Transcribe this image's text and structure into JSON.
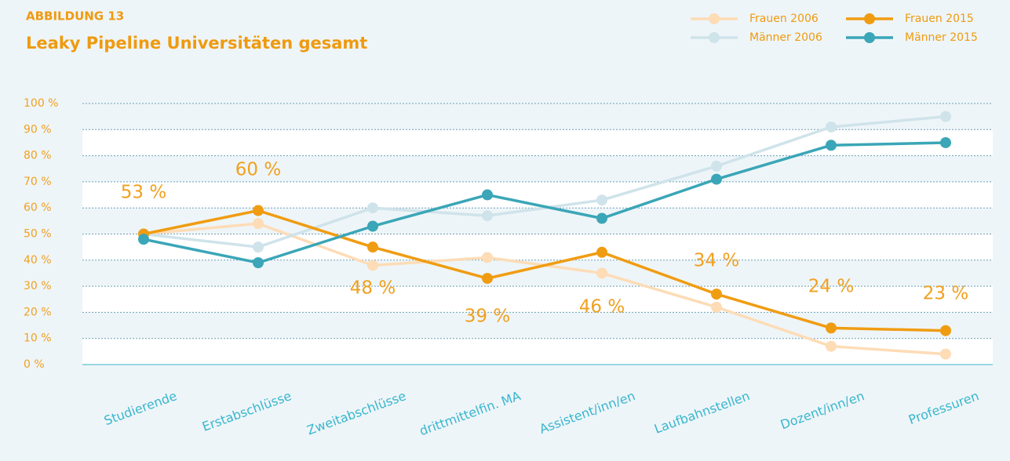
{
  "chart_data": {
    "type": "line",
    "label": "ABBILDUNG 13",
    "title": "Leaky Pipeline Universitäten gesamt",
    "categories": [
      "Studierende",
      "Erstabschlüsse",
      "Zweitabschlüsse",
      "drittmittelfin. MA",
      "Assistent/inn/en",
      "Laufbahnstellen",
      "Dozent/inn/en",
      "Professuren"
    ],
    "series": [
      {
        "name": "Frauen 2006",
        "color": "#fddcb6",
        "values": [
          50,
          54,
          38,
          41,
          35,
          22,
          7,
          4
        ]
      },
      {
        "name": "Männer 2006",
        "color": "#cfe3ea",
        "values": [
          50,
          45,
          60,
          57,
          63,
          76,
          91,
          95
        ]
      },
      {
        "name": "Frauen 2015",
        "color": "#f09c12",
        "values": [
          50,
          59,
          45,
          33,
          43,
          27,
          14,
          13
        ]
      },
      {
        "name": "Männer 2015",
        "color": "#3aa6b7",
        "values": [
          48,
          39,
          53,
          65,
          56,
          71,
          84,
          85
        ]
      }
    ],
    "annotations": [
      "53 %",
      "60 %",
      "48 %",
      "39 %",
      "46 %",
      "34 %",
      "24 %",
      "23 %"
    ],
    "ylim": [
      0,
      100
    ],
    "yticks": [
      {
        "value": 0,
        "label": "0 %"
      },
      {
        "value": 10,
        "label": "10 %"
      },
      {
        "value": 20,
        "label": "20 %"
      },
      {
        "value": 30,
        "label": "30 %"
      },
      {
        "value": 40,
        "label": "40 %"
      },
      {
        "value": 50,
        "label": "50 %"
      },
      {
        "value": 60,
        "label": "60 %"
      },
      {
        "value": 70,
        "label": "70 %"
      },
      {
        "value": 80,
        "label": "80 %"
      },
      {
        "value": 90,
        "label": "90 %"
      },
      {
        "value": 100,
        "label": "100 %"
      }
    ],
    "grid": true,
    "legend": "top-right"
  }
}
